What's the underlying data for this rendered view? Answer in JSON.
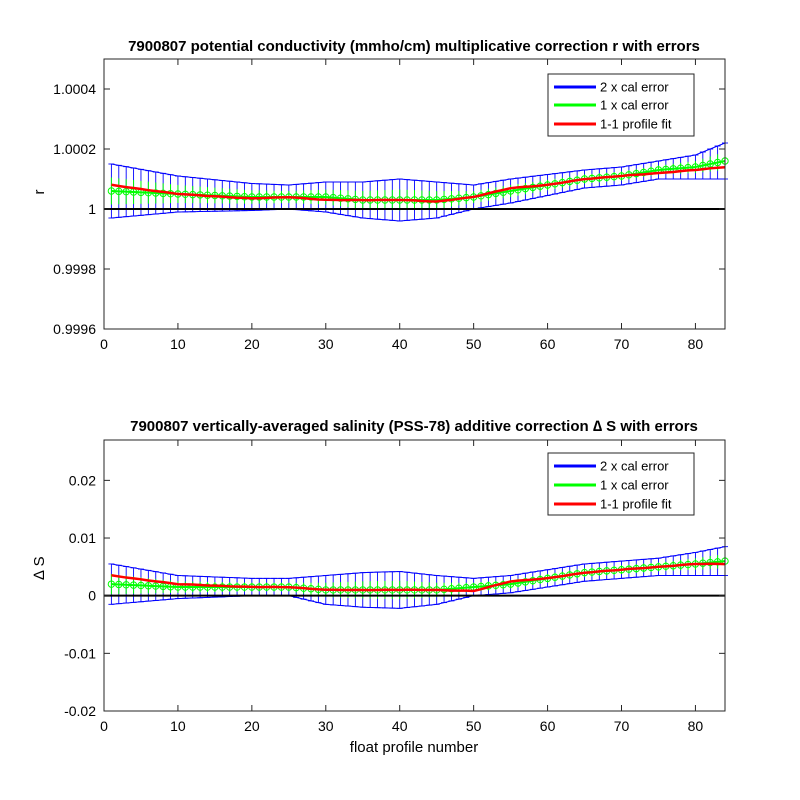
{
  "chart_data": [
    {
      "type": "line",
      "title": "7900807 potential conductivity (mmho/cm) multiplicative correction r with errors",
      "xlabel": "",
      "ylabel": "r",
      "xlim": [
        0,
        84
      ],
      "ylim": [
        0.9996,
        1.0005
      ],
      "xticks": [
        0,
        10,
        20,
        30,
        40,
        50,
        60,
        70,
        80
      ],
      "xtick_labels": [
        "0",
        "10",
        "20",
        "30",
        "40",
        "50",
        "60",
        "70",
        "80"
      ],
      "yticks": [
        0.9996,
        0.9998,
        1,
        1.0002,
        1.0004
      ],
      "ytick_labels": [
        "0.9996",
        "0.9998",
        "1",
        "1.0002",
        "1.0004"
      ],
      "reference_line": 1,
      "legend": {
        "position": "top-right",
        "entries": [
          "2 x cal error",
          "1 x cal error",
          "1-1 profile fit"
        ]
      },
      "colors": {
        "two_sigma": "#0000ff",
        "one_sigma": "#00ff00",
        "fit": "#ff0000",
        "reference": "#000000"
      },
      "control_points": {
        "x": [
          1,
          10,
          20,
          25,
          30,
          35,
          40,
          45,
          50,
          55,
          60,
          65,
          70,
          75,
          80,
          84
        ],
        "fit": [
          1.00008,
          1.00005,
          1.000035,
          1.00004,
          1.00003,
          1.00003,
          1.00003,
          1.000025,
          1.00004,
          1.00007,
          1.00008,
          1.0001,
          1.00011,
          1.00012,
          1.00013,
          1.00014
        ],
        "err1": [
          1.00006,
          1.00005,
          1.00004,
          1.00004,
          1.00004,
          1.00003,
          1.00003,
          1.00003,
          1.00004,
          1.00006,
          1.00008,
          1.0001,
          1.00011,
          1.00013,
          1.00014,
          1.00016
        ],
        "err_half": [
          9e-05,
          6e-05,
          4.5e-05,
          4e-05,
          5e-05,
          6e-05,
          7e-05,
          6e-05,
          4e-05,
          4e-05,
          3.5e-05,
          3e-05,
          3e-05,
          3e-05,
          4e-05,
          6e-05
        ]
      }
    },
    {
      "type": "line",
      "title": "7900807 vertically-averaged salinity (PSS-78) additive correction ∆ S with errors",
      "xlabel": "float profile number",
      "ylabel": "∆ S",
      "xlim": [
        0,
        84
      ],
      "ylim": [
        -0.02,
        0.027
      ],
      "xticks": [
        0,
        10,
        20,
        30,
        40,
        50,
        60,
        70,
        80
      ],
      "xtick_labels": [
        "0",
        "10",
        "20",
        "30",
        "40",
        "50",
        "60",
        "70",
        "80"
      ],
      "yticks": [
        -0.02,
        -0.01,
        0,
        0.01,
        0.02
      ],
      "ytick_labels": [
        "-0.02",
        "-0.01",
        "0",
        "0.01",
        "0.02"
      ],
      "reference_line": 0,
      "legend": {
        "position": "top-right",
        "entries": [
          "2 x cal error",
          "1 x cal error",
          "1-1 profile fit"
        ]
      },
      "colors": {
        "two_sigma": "#0000ff",
        "one_sigma": "#00ff00",
        "fit": "#ff0000",
        "reference": "#000000"
      },
      "control_points": {
        "x": [
          1,
          10,
          20,
          25,
          30,
          35,
          40,
          45,
          50,
          55,
          60,
          65,
          70,
          75,
          80,
          84
        ],
        "fit": [
          0.0035,
          0.002,
          0.0015,
          0.0015,
          0.001,
          0.001,
          0.001,
          0.001,
          0.0008,
          0.0025,
          0.003,
          0.004,
          0.0045,
          0.005,
          0.0055,
          0.0055
        ],
        "err1": [
          0.002,
          0.0015,
          0.0015,
          0.0015,
          0.001,
          0.001,
          0.001,
          0.001,
          0.0015,
          0.002,
          0.003,
          0.004,
          0.0045,
          0.005,
          0.0055,
          0.006
        ],
        "err_half": [
          0.0035,
          0.002,
          0.0015,
          0.0015,
          0.0025,
          0.003,
          0.0032,
          0.0025,
          0.0015,
          0.0015,
          0.0015,
          0.0015,
          0.0015,
          0.0015,
          0.002,
          0.0025
        ]
      }
    }
  ]
}
